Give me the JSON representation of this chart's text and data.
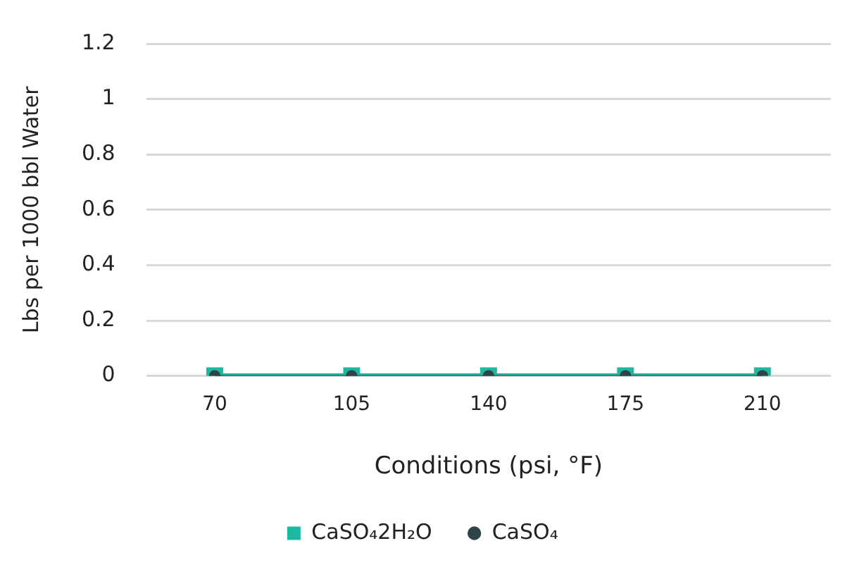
{
  "chart_data": {
    "type": "line",
    "xlabel": "Conditions (psi, °F)",
    "ylabel": "Lbs per 1000 bbl Water",
    "categories": [
      "70",
      "105",
      "140",
      "175",
      "210"
    ],
    "series": [
      {
        "name": "CaSO₄2H₂O",
        "color": "#1db8a0",
        "values": [
          0,
          0,
          0,
          0,
          0
        ],
        "marker": "square"
      },
      {
        "name": "CaSO₄",
        "color": "#2f4447",
        "values": [
          0,
          0,
          0,
          0,
          0
        ],
        "marker": "circle"
      }
    ],
    "ylim": [
      0,
      1.2
    ],
    "yticks": [
      0,
      0.2,
      0.4,
      0.6,
      0.8,
      1,
      1.2
    ],
    "grid": "y",
    "legend": "bottom",
    "line_style": "solid"
  }
}
